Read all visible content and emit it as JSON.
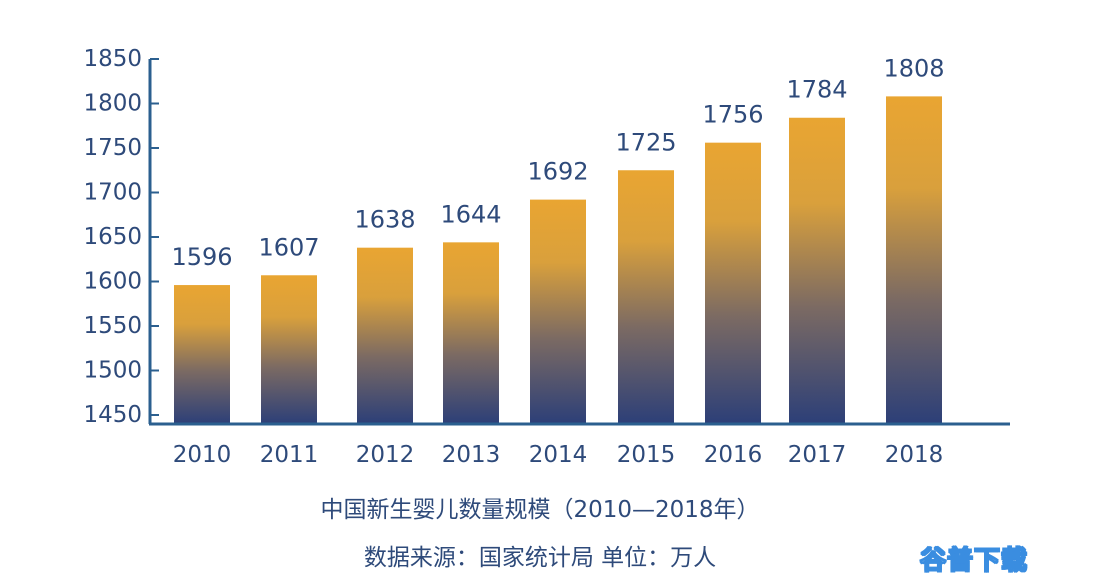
{
  "chart_data": {
    "type": "bar",
    "title": "中国新生婴儿数量规模（2010—2018年）",
    "source": "数据来源：国家统计局  单位：万人",
    "categories": [
      "2010",
      "2011",
      "2012",
      "2013",
      "2014",
      "2015",
      "2016",
      "2017",
      "2018"
    ],
    "values": [
      1596,
      1607,
      1638,
      1644,
      1692,
      1725,
      1756,
      1784,
      1808
    ],
    "value_labels": [
      "1596",
      "1607",
      "1638",
      "1644",
      "1692",
      "1725",
      "1756",
      "1784",
      "1808"
    ],
    "yticks": [
      "1450",
      "1500",
      "1550",
      "1600",
      "1650",
      "1700",
      "1750",
      "1800",
      "1850"
    ],
    "ytick_values": [
      1450,
      1500,
      1550,
      1600,
      1650,
      1700,
      1750,
      1800,
      1850
    ],
    "ylim": [
      1450,
      1850
    ],
    "xlabel": "",
    "ylabel": "",
    "grid": false,
    "legend": "none",
    "colors": {
      "bar_top": "#e9a532",
      "bar_bottom": "#2c3f78",
      "axis": "#2b5f8f",
      "text": "#2e4a7a"
    }
  },
  "watermark": "谷普下载"
}
